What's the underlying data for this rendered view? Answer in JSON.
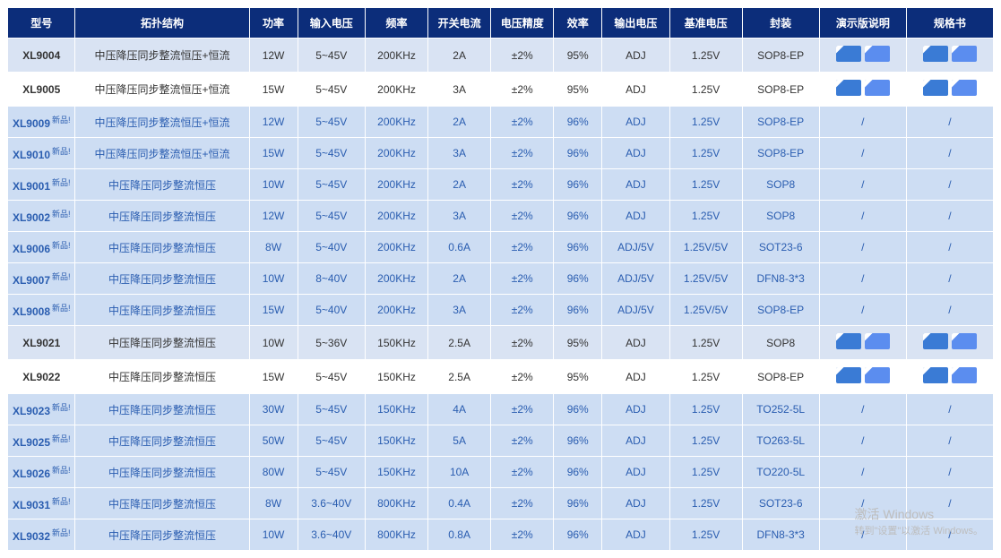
{
  "watermark": {
    "line1": "激活 Windows",
    "line2": "转到\"设置\"以激活 Windows。"
  },
  "newBadge": "新品!",
  "table": {
    "headers": [
      "型号",
      "拓扑结构",
      "功率",
      "输入电压",
      "频率",
      "开关电流",
      "电压精度",
      "效率",
      "输出电压",
      "基准电压",
      "封装",
      "演示版说明",
      "规格书"
    ],
    "headerBg": "#0c2d7a",
    "headerColor": "#ffffff",
    "rowBgNormalOdd": "#d9e3f3",
    "rowBgNormalEven": "#ffffff",
    "rowBgNew": "#cdddf3",
    "newTextColor": "#2a5db0",
    "rows": [
      {
        "model": "XL9004",
        "new": false,
        "topology": "中压降压同步整流恒压+恒流",
        "power": "12W",
        "vin": "5~45V",
        "freq": "200KHz",
        "isw": "2A",
        "vacc": "±2%",
        "eff": "95%",
        "vout": "ADJ",
        "vref": "1.25V",
        "pkg": "SOP8-EP",
        "demo": "chips",
        "spec": "chips"
      },
      {
        "model": "XL9005",
        "new": false,
        "topology": "中压降压同步整流恒压+恒流",
        "power": "15W",
        "vin": "5~45V",
        "freq": "200KHz",
        "isw": "3A",
        "vacc": "±2%",
        "eff": "95%",
        "vout": "ADJ",
        "vref": "1.25V",
        "pkg": "SOP8-EP",
        "demo": "chips",
        "spec": "chips"
      },
      {
        "model": "XL9009",
        "new": true,
        "topology": "中压降压同步整流恒压+恒流",
        "power": "12W",
        "vin": "5~45V",
        "freq": "200KHz",
        "isw": "2A",
        "vacc": "±2%",
        "eff": "96%",
        "vout": "ADJ",
        "vref": "1.25V",
        "pkg": "SOP8-EP",
        "demo": "/",
        "spec": "/"
      },
      {
        "model": "XL9010",
        "new": true,
        "topology": "中压降压同步整流恒压+恒流",
        "power": "15W",
        "vin": "5~45V",
        "freq": "200KHz",
        "isw": "3A",
        "vacc": "±2%",
        "eff": "96%",
        "vout": "ADJ",
        "vref": "1.25V",
        "pkg": "SOP8-EP",
        "demo": "/",
        "spec": "/"
      },
      {
        "model": "XL9001",
        "new": true,
        "topology": "中压降压同步整流恒压",
        "power": "10W",
        "vin": "5~45V",
        "freq": "200KHz",
        "isw": "2A",
        "vacc": "±2%",
        "eff": "96%",
        "vout": "ADJ",
        "vref": "1.25V",
        "pkg": "SOP8",
        "demo": "/",
        "spec": "/"
      },
      {
        "model": "XL9002",
        "new": true,
        "topology": "中压降压同步整流恒压",
        "power": "12W",
        "vin": "5~45V",
        "freq": "200KHz",
        "isw": "3A",
        "vacc": "±2%",
        "eff": "96%",
        "vout": "ADJ",
        "vref": "1.25V",
        "pkg": "SOP8",
        "demo": "/",
        "spec": "/"
      },
      {
        "model": "XL9006",
        "new": true,
        "topology": "中压降压同步整流恒压",
        "power": "8W",
        "vin": "5~40V",
        "freq": "200KHz",
        "isw": "0.6A",
        "vacc": "±2%",
        "eff": "96%",
        "vout": "ADJ/5V",
        "vref": "1.25V/5V",
        "pkg": "SOT23-6",
        "demo": "/",
        "spec": "/"
      },
      {
        "model": "XL9007",
        "new": true,
        "topology": "中压降压同步整流恒压",
        "power": "10W",
        "vin": "8~40V",
        "freq": "200KHz",
        "isw": "2A",
        "vacc": "±2%",
        "eff": "96%",
        "vout": "ADJ/5V",
        "vref": "1.25V/5V",
        "pkg": "DFN8-3*3",
        "demo": "/",
        "spec": "/"
      },
      {
        "model": "XL9008",
        "new": true,
        "topology": "中压降压同步整流恒压",
        "power": "15W",
        "vin": "5~40V",
        "freq": "200KHz",
        "isw": "3A",
        "vacc": "±2%",
        "eff": "96%",
        "vout": "ADJ/5V",
        "vref": "1.25V/5V",
        "pkg": "SOP8-EP",
        "demo": "/",
        "spec": "/"
      },
      {
        "model": "XL9021",
        "new": false,
        "topology": "中压降压同步整流恒压",
        "power": "10W",
        "vin": "5~36V",
        "freq": "150KHz",
        "isw": "2.5A",
        "vacc": "±2%",
        "eff": "95%",
        "vout": "ADJ",
        "vref": "1.25V",
        "pkg": "SOP8",
        "demo": "chips",
        "spec": "chips"
      },
      {
        "model": "XL9022",
        "new": false,
        "topology": "中压降压同步整流恒压",
        "power": "15W",
        "vin": "5~45V",
        "freq": "150KHz",
        "isw": "2.5A",
        "vacc": "±2%",
        "eff": "95%",
        "vout": "ADJ",
        "vref": "1.25V",
        "pkg": "SOP8-EP",
        "demo": "chips",
        "spec": "chips"
      },
      {
        "model": "XL9023",
        "new": true,
        "topology": "中压降压同步整流恒压",
        "power": "30W",
        "vin": "5~45V",
        "freq": "150KHz",
        "isw": "4A",
        "vacc": "±2%",
        "eff": "96%",
        "vout": "ADJ",
        "vref": "1.25V",
        "pkg": "TO252-5L",
        "demo": "/",
        "spec": "/"
      },
      {
        "model": "XL9025",
        "new": true,
        "topology": "中压降压同步整流恒压",
        "power": "50W",
        "vin": "5~45V",
        "freq": "150KHz",
        "isw": "5A",
        "vacc": "±2%",
        "eff": "96%",
        "vout": "ADJ",
        "vref": "1.25V",
        "pkg": "TO263-5L",
        "demo": "/",
        "spec": "/"
      },
      {
        "model": "XL9026",
        "new": true,
        "topology": "中压降压同步整流恒压",
        "power": "80W",
        "vin": "5~45V",
        "freq": "150KHz",
        "isw": "10A",
        "vacc": "±2%",
        "eff": "96%",
        "vout": "ADJ",
        "vref": "1.25V",
        "pkg": "TO220-5L",
        "demo": "/",
        "spec": "/"
      },
      {
        "model": "XL9031",
        "new": true,
        "topology": "中压降压同步整流恒压",
        "power": "8W",
        "vin": "3.6~40V",
        "freq": "800KHz",
        "isw": "0.4A",
        "vacc": "±2%",
        "eff": "96%",
        "vout": "ADJ",
        "vref": "1.25V",
        "pkg": "SOT23-6",
        "demo": "/",
        "spec": "/"
      },
      {
        "model": "XL9032",
        "new": true,
        "topology": "中压降压同步整流恒压",
        "power": "10W",
        "vin": "3.6~40V",
        "freq": "800KHz",
        "isw": "0.8A",
        "vacc": "±2%",
        "eff": "96%",
        "vout": "ADJ",
        "vref": "1.25V",
        "pkg": "DFN8-3*3",
        "demo": "/",
        "spec": "/"
      }
    ]
  }
}
